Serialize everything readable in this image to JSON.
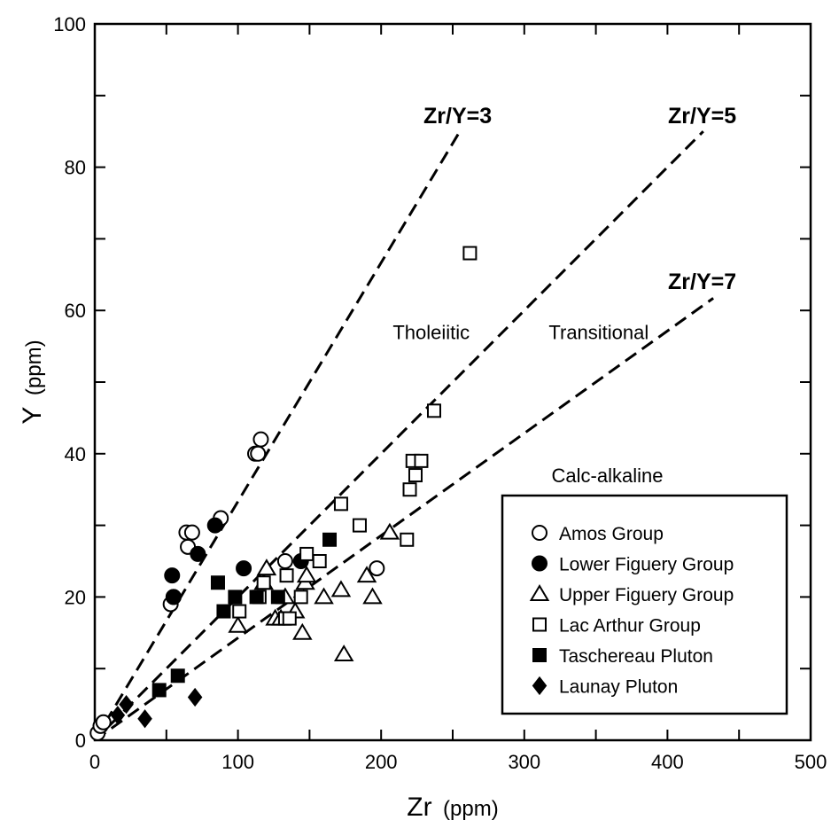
{
  "chart_data": {
    "type": "scatter",
    "xlabel": "Zr",
    "xunit": "(ppm)",
    "ylabel": "Y",
    "yunit": "(ppm)",
    "xlim": [
      0,
      500
    ],
    "ylim": [
      0,
      100
    ],
    "xticks": [
      0,
      100,
      200,
      300,
      400,
      500
    ],
    "yticks": [
      0,
      20,
      40,
      60,
      80,
      100
    ],
    "grid": false,
    "legend_position": "bottom-right",
    "reference_lines": [
      {
        "label": "Zr/Y=3",
        "ratio": 3
      },
      {
        "label": "Zr/Y=5",
        "ratio": 5
      },
      {
        "label": "Zr/Y=7",
        "ratio": 7
      }
    ],
    "field_labels": [
      {
        "text": "Tholeiitic",
        "x": 235,
        "y": 57
      },
      {
        "text": "Transitional",
        "x": 352,
        "y": 57
      },
      {
        "text": "Calc-alkaline",
        "x": 358,
        "y": 37
      }
    ],
    "series": [
      {
        "name": "Amos Group",
        "marker": "circle-open",
        "points": [
          [
            2,
            1
          ],
          [
            4,
            2
          ],
          [
            6,
            2.5
          ],
          [
            53,
            19
          ],
          [
            55,
            20
          ],
          [
            64,
            29
          ],
          [
            65,
            27
          ],
          [
            68,
            29
          ],
          [
            88,
            31
          ],
          [
            112,
            40
          ],
          [
            114,
            40
          ],
          [
            116,
            42
          ],
          [
            133,
            25
          ],
          [
            197,
            24
          ]
        ]
      },
      {
        "name": "Lower Figuery Group",
        "marker": "circle-filled",
        "points": [
          [
            54,
            23
          ],
          [
            55,
            20
          ],
          [
            72,
            26
          ],
          [
            84,
            30
          ],
          [
            104,
            24
          ],
          [
            144,
            25
          ]
        ]
      },
      {
        "name": "Upper Figuery Group",
        "marker": "triangle-open",
        "points": [
          [
            100,
            16
          ],
          [
            118,
            22
          ],
          [
            120,
            24
          ],
          [
            126,
            17
          ],
          [
            130,
            17
          ],
          [
            133,
            20
          ],
          [
            140,
            18
          ],
          [
            145,
            15
          ],
          [
            147,
            22
          ],
          [
            148,
            23
          ],
          [
            160,
            20
          ],
          [
            172,
            21
          ],
          [
            174,
            12
          ],
          [
            190,
            23
          ],
          [
            194,
            20
          ],
          [
            206,
            29
          ]
        ]
      },
      {
        "name": "Lac Arthur Group",
        "marker": "square-open",
        "points": [
          [
            101,
            18
          ],
          [
            115,
            20
          ],
          [
            118,
            22
          ],
          [
            133,
            17
          ],
          [
            134,
            23
          ],
          [
            136,
            17
          ],
          [
            144,
            20
          ],
          [
            148,
            26
          ],
          [
            157,
            25
          ],
          [
            172,
            33
          ],
          [
            185,
            30
          ],
          [
            218,
            28
          ],
          [
            220,
            35
          ],
          [
            222,
            39
          ],
          [
            224,
            37
          ],
          [
            228,
            39
          ],
          [
            237,
            46
          ],
          [
            262,
            68
          ]
        ]
      },
      {
        "name": "Taschereau Pluton",
        "marker": "square-filled",
        "points": [
          [
            45,
            7
          ],
          [
            58,
            9
          ],
          [
            86,
            22
          ],
          [
            90,
            18
          ],
          [
            98,
            20
          ],
          [
            113,
            20
          ],
          [
            128,
            20
          ],
          [
            164,
            28
          ]
        ]
      },
      {
        "name": "Launay Pluton",
        "marker": "diamond-filled",
        "points": [
          [
            16,
            3.5
          ],
          [
            22,
            5
          ],
          [
            35,
            3
          ],
          [
            70,
            6
          ]
        ]
      }
    ]
  }
}
